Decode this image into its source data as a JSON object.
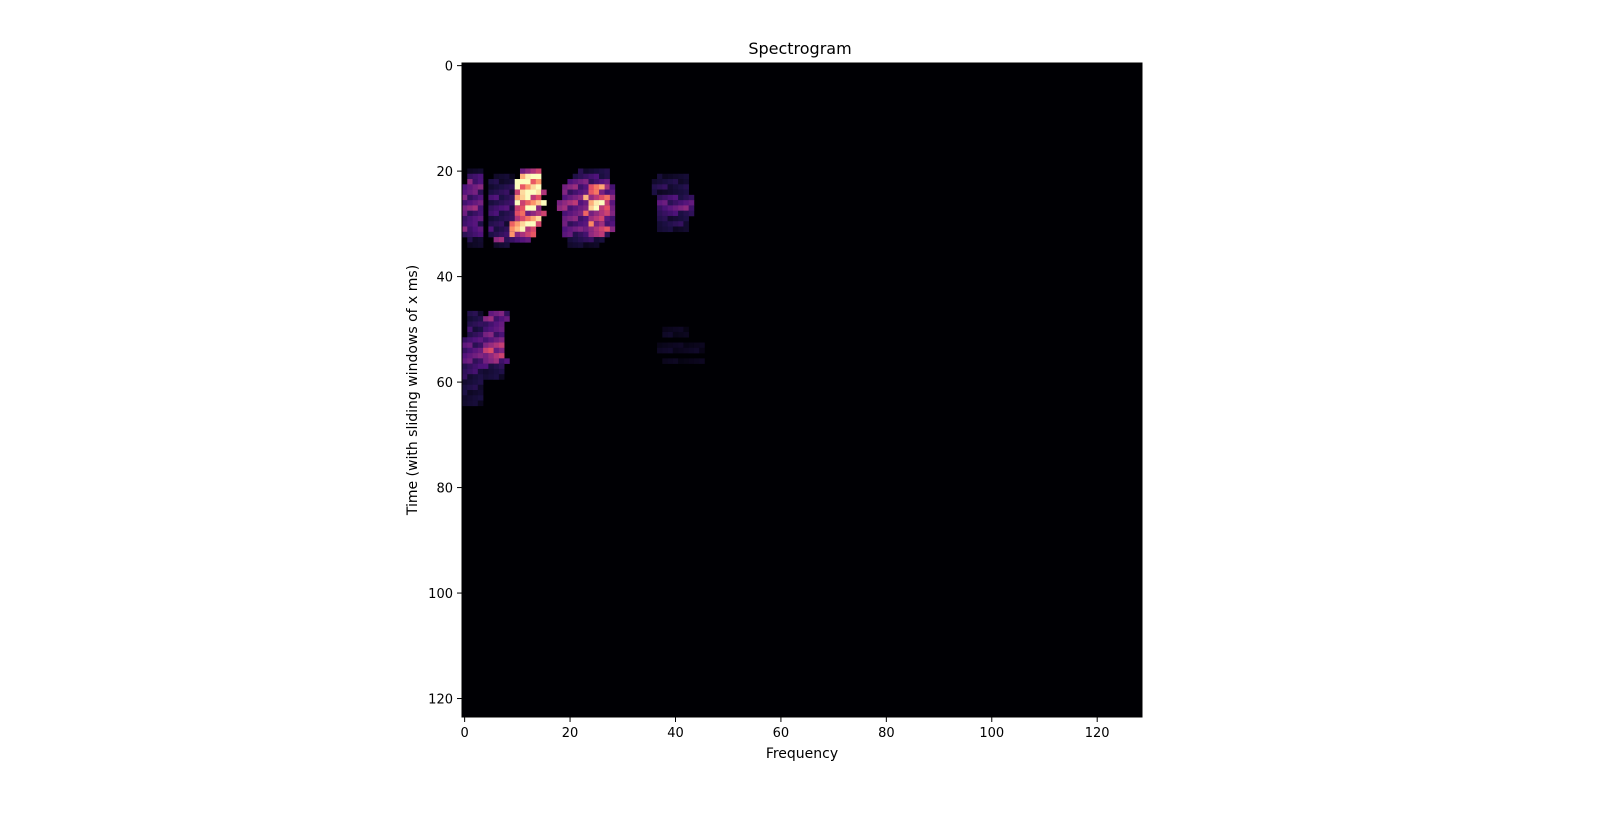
{
  "chart_data": {
    "type": "heatmap",
    "title": "Spectrogram",
    "xlabel": "Frequency",
    "ylabel": "Time (with sliding windows of x ms)",
    "xlim": [
      -0.5,
      128.5
    ],
    "ylim": [
      123.5,
      -0.5
    ],
    "y_inverted": true,
    "colormap": "magma",
    "grid": false,
    "x_ticks": [
      0,
      20,
      40,
      60,
      80,
      100,
      120
    ],
    "y_ticks": [
      0,
      20,
      40,
      60,
      80,
      100,
      120
    ],
    "n_freq_bins": 129,
    "n_time_bins": 124,
    "background_value": 0,
    "colors": {
      "background": "#000004",
      "frame": "#000000"
    },
    "active_cells": [
      {
        "t": 20,
        "f": [
          [
            1,
            3,
            0.08
          ],
          [
            11,
            14,
            0.55
          ],
          [
            22,
            27,
            0.12
          ]
        ]
      },
      {
        "t": 21,
        "f": [
          [
            1,
            3,
            0.18
          ],
          [
            6,
            9,
            0.08
          ],
          [
            11,
            14,
            0.95
          ],
          [
            21,
            27,
            0.2
          ],
          [
            37,
            42,
            0.08
          ]
        ]
      },
      {
        "t": 22,
        "f": [
          [
            1,
            3,
            0.3
          ],
          [
            5,
            9,
            0.12
          ],
          [
            10,
            14,
            1.0
          ],
          [
            20,
            27,
            0.3
          ],
          [
            36,
            42,
            0.12
          ]
        ]
      },
      {
        "t": 23,
        "f": [
          [
            0,
            3,
            0.35
          ],
          [
            5,
            9,
            0.15
          ],
          [
            10,
            14,
            1.0
          ],
          [
            19,
            28,
            0.35
          ],
          [
            24,
            26,
            0.7
          ],
          [
            36,
            42,
            0.15
          ]
        ]
      },
      {
        "t": 24,
        "f": [
          [
            0,
            3,
            0.28
          ],
          [
            5,
            10,
            0.15
          ],
          [
            10,
            15,
            0.7
          ],
          [
            11,
            13,
            1.0
          ],
          [
            19,
            28,
            0.3
          ],
          [
            24,
            26,
            0.55
          ],
          [
            36,
            42,
            0.1
          ]
        ]
      },
      {
        "t": 25,
        "f": [
          [
            0,
            3,
            0.3
          ],
          [
            5,
            10,
            0.2
          ],
          [
            10,
            14,
            0.75
          ],
          [
            19,
            28,
            0.35
          ],
          [
            23,
            27,
            0.65
          ],
          [
            37,
            43,
            0.2
          ]
        ]
      },
      {
        "t": 26,
        "f": [
          [
            0,
            3,
            0.3
          ],
          [
            5,
            10,
            0.18
          ],
          [
            10,
            15,
            0.8
          ],
          [
            18,
            28,
            0.4
          ],
          [
            24,
            26,
            0.9
          ],
          [
            37,
            43,
            0.25
          ]
        ]
      },
      {
        "t": 27,
        "f": [
          [
            0,
            3,
            0.35
          ],
          [
            5,
            11,
            0.2
          ],
          [
            10,
            14,
            0.65
          ],
          [
            12,
            13,
            1.0
          ],
          [
            18,
            28,
            0.35
          ],
          [
            24,
            27,
            0.75
          ],
          [
            37,
            43,
            0.3
          ]
        ]
      },
      {
        "t": 28,
        "f": [
          [
            0,
            3,
            0.25
          ],
          [
            5,
            10,
            0.18
          ],
          [
            10,
            15,
            0.55
          ],
          [
            19,
            28,
            0.3
          ],
          [
            23,
            27,
            0.5
          ],
          [
            37,
            43,
            0.18
          ]
        ]
      },
      {
        "t": 29,
        "f": [
          [
            0,
            3,
            0.25
          ],
          [
            5,
            10,
            0.15
          ],
          [
            10,
            14,
            0.8
          ],
          [
            19,
            28,
            0.3
          ],
          [
            24,
            27,
            0.45
          ],
          [
            37,
            42,
            0.12
          ]
        ]
      },
      {
        "t": 30,
        "f": [
          [
            0,
            3,
            0.2
          ],
          [
            5,
            10,
            0.15
          ],
          [
            9,
            14,
            0.9
          ],
          [
            19,
            28,
            0.25
          ],
          [
            24,
            26,
            0.6
          ],
          [
            37,
            42,
            0.15
          ]
        ]
      },
      {
        "t": 31,
        "f": [
          [
            0,
            3,
            0.3
          ],
          [
            5,
            10,
            0.2
          ],
          [
            9,
            13,
            0.75
          ],
          [
            19,
            28,
            0.3
          ],
          [
            23,
            27,
            0.55
          ],
          [
            37,
            42,
            0.1
          ]
        ]
      },
      {
        "t": 32,
        "f": [
          [
            0,
            3,
            0.2
          ],
          [
            5,
            9,
            0.18
          ],
          [
            9,
            13,
            0.6
          ],
          [
            19,
            27,
            0.25
          ],
          [
            24,
            26,
            0.4
          ]
        ]
      },
      {
        "t": 33,
        "f": [
          [
            1,
            3,
            0.12
          ],
          [
            6,
            8,
            0.35
          ],
          [
            8,
            12,
            0.25
          ],
          [
            20,
            26,
            0.15
          ]
        ]
      },
      {
        "t": 34,
        "f": [
          [
            1,
            3,
            0.08
          ],
          [
            6,
            8,
            0.12
          ],
          [
            20,
            25,
            0.08
          ]
        ]
      },
      {
        "t": 47,
        "f": [
          [
            1,
            3,
            0.12
          ],
          [
            5,
            8,
            0.3
          ]
        ]
      },
      {
        "t": 48,
        "f": [
          [
            1,
            3,
            0.15
          ],
          [
            4,
            8,
            0.35
          ]
        ]
      },
      {
        "t": 49,
        "f": [
          [
            1,
            3,
            0.15
          ],
          [
            4,
            7,
            0.3
          ]
        ]
      },
      {
        "t": 50,
        "f": [
          [
            1,
            3,
            0.18
          ],
          [
            4,
            7,
            0.25
          ],
          [
            38,
            42,
            0.05
          ]
        ]
      },
      {
        "t": 51,
        "f": [
          [
            1,
            3,
            0.2
          ],
          [
            4,
            7,
            0.3
          ],
          [
            38,
            42,
            0.06
          ]
        ]
      },
      {
        "t": 52,
        "f": [
          [
            0,
            3,
            0.22
          ],
          [
            4,
            7,
            0.35
          ]
        ]
      },
      {
        "t": 53,
        "f": [
          [
            0,
            3,
            0.25
          ],
          [
            4,
            7,
            0.4
          ],
          [
            37,
            45,
            0.05
          ]
        ]
      },
      {
        "t": 54,
        "f": [
          [
            0,
            3,
            0.3
          ],
          [
            4,
            7,
            0.45
          ],
          [
            37,
            45,
            0.06
          ]
        ]
      },
      {
        "t": 55,
        "f": [
          [
            0,
            3,
            0.28
          ],
          [
            4,
            7,
            0.5
          ]
        ]
      },
      {
        "t": 56,
        "f": [
          [
            0,
            3,
            0.25
          ],
          [
            4,
            8,
            0.35
          ],
          [
            38,
            45,
            0.05
          ]
        ]
      },
      {
        "t": 57,
        "f": [
          [
            0,
            3,
            0.22
          ],
          [
            4,
            7,
            0.2
          ]
        ]
      },
      {
        "t": 58,
        "f": [
          [
            0,
            3,
            0.18
          ],
          [
            4,
            7,
            0.12
          ]
        ]
      },
      {
        "t": 59,
        "f": [
          [
            0,
            3,
            0.15
          ],
          [
            4,
            7,
            0.1
          ]
        ]
      },
      {
        "t": 60,
        "f": [
          [
            0,
            3,
            0.12
          ]
        ]
      },
      {
        "t": 61,
        "f": [
          [
            0,
            3,
            0.12
          ]
        ]
      },
      {
        "t": 62,
        "f": [
          [
            0,
            3,
            0.1
          ]
        ]
      },
      {
        "t": 63,
        "f": [
          [
            0,
            3,
            0.1
          ]
        ]
      },
      {
        "t": 64,
        "f": [
          [
            0,
            3,
            0.08
          ]
        ]
      }
    ]
  }
}
